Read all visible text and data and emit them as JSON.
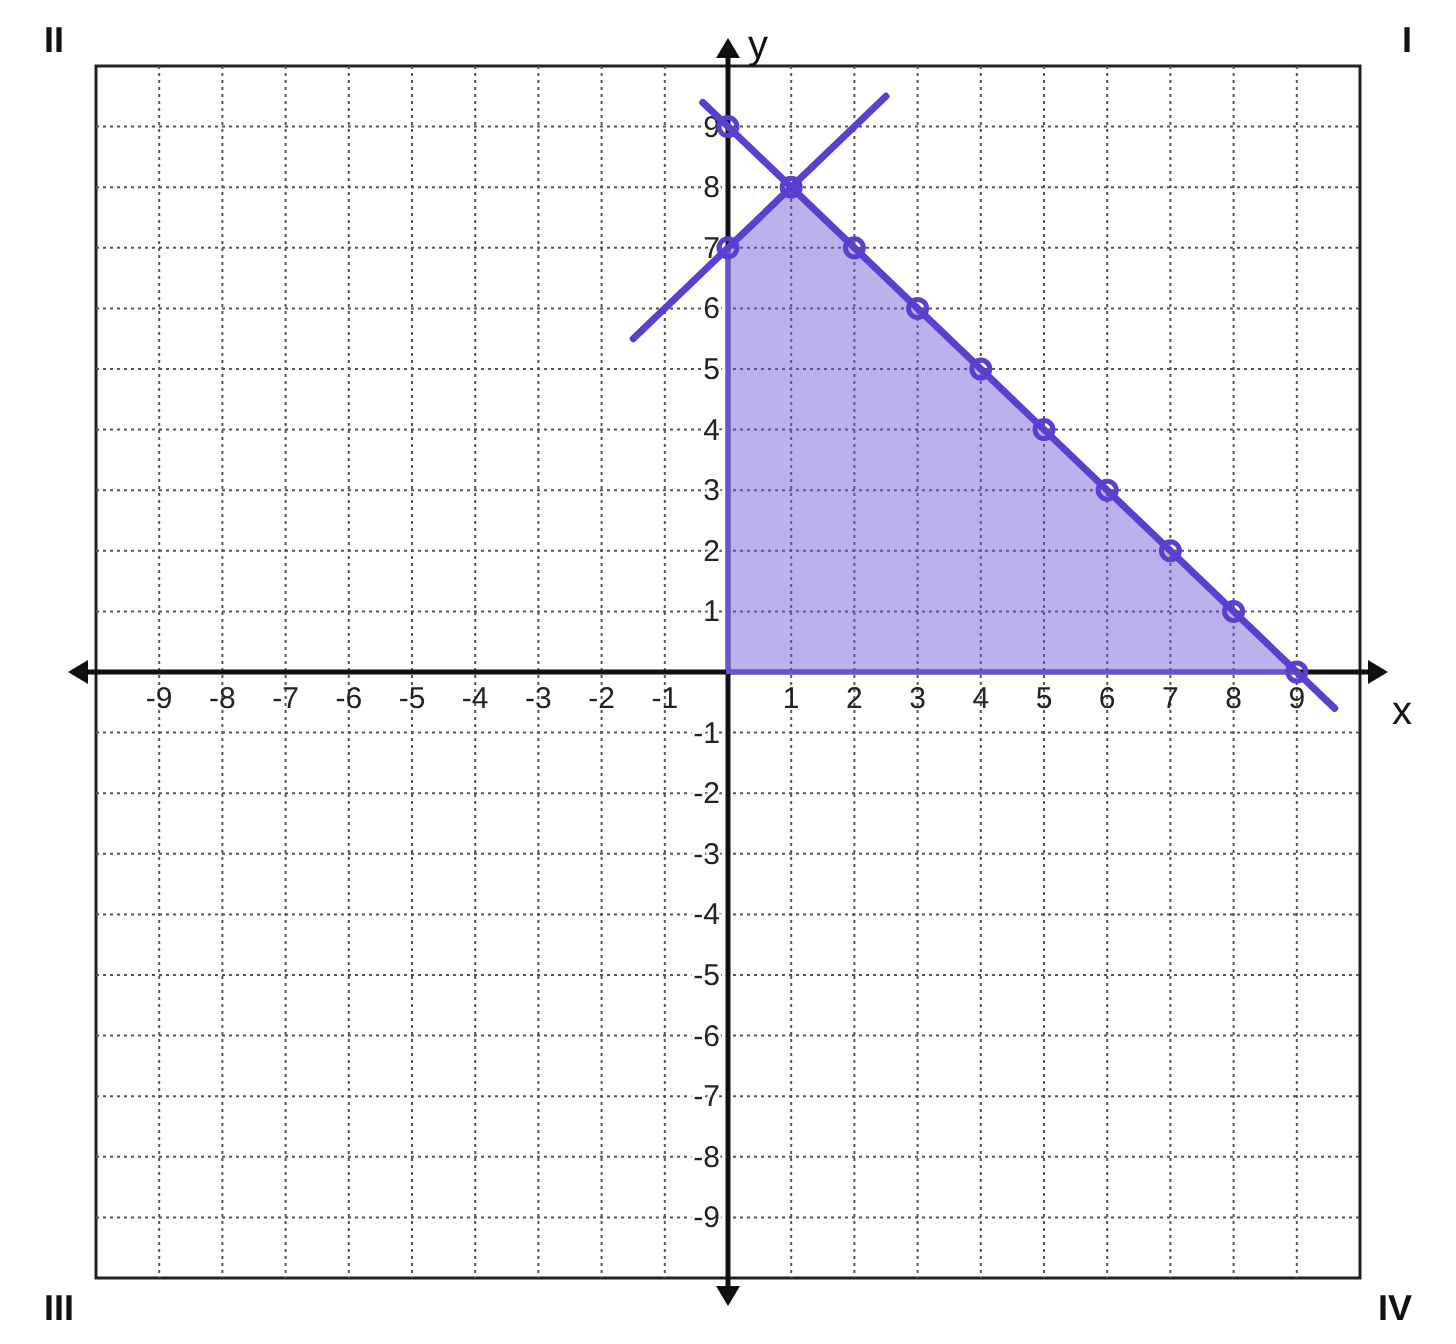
{
  "chart_data": {
    "type": "line",
    "xlabel": "x",
    "ylabel": "y",
    "xlim": [
      -10,
      10
    ],
    "ylim": [
      -10,
      10
    ],
    "xticks": [
      -9,
      -8,
      -7,
      -6,
      -5,
      -4,
      -3,
      -2,
      -1,
      1,
      2,
      3,
      4,
      5,
      6,
      7,
      8,
      9
    ],
    "yticks": [
      -9,
      -8,
      -7,
      -6,
      -5,
      -4,
      -3,
      -2,
      -1,
      1,
      2,
      3,
      4,
      5,
      6,
      7,
      8,
      9
    ],
    "grid": true,
    "annotations": [
      "I",
      "II",
      "III",
      "IV"
    ],
    "series": [
      {
        "type": "area",
        "color": "#6a52d6",
        "x": [
          0,
          1,
          9
        ],
        "values": [
          7,
          8,
          0
        ]
      },
      {
        "color": "#5a3fd0",
        "x": [
          -0.4,
          9.6
        ],
        "values": [
          9.4,
          -0.6
        ],
        "marker": "none"
      },
      {
        "color": "#5a3fd0",
        "x": [
          -1.5,
          2.5
        ],
        "values": [
          5.5,
          9.5
        ],
        "marker": "none"
      },
      {
        "type": "scatter",
        "color": "#5a3fd0",
        "x": [
          0,
          1,
          2,
          3,
          4,
          5,
          6,
          7,
          8,
          9,
          0
        ],
        "values": [
          9,
          8,
          7,
          6,
          5,
          4,
          3,
          2,
          1,
          0,
          7
        ],
        "marker": "circle"
      }
    ]
  }
}
